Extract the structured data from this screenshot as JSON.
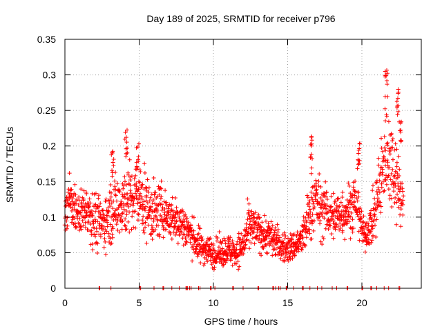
{
  "chart_data": {
    "type": "scatter",
    "title": "Day 189 of 2025, SRMTID for receiver p796",
    "xlabel": "GPS time / hours",
    "ylabel": "SRMTID / TECUs",
    "xlim": [
      0,
      24
    ],
    "ylim": [
      0,
      0.35
    ],
    "xticks": [
      0,
      5,
      10,
      15,
      20
    ],
    "xtick_labels": [
      "0",
      "5",
      "10",
      "15",
      "20"
    ],
    "yticks": [
      0,
      0.05,
      0.1,
      0.15,
      0.2,
      0.25,
      0.3,
      0.35
    ],
    "ytick_labels": [
      "0",
      "0.05",
      "0.1",
      "0.15",
      "0.2",
      "0.25",
      "0.3",
      "0.35"
    ],
    "grid": true,
    "marker": "+",
    "marker_color": "#ff0000",
    "series": [
      {
        "name": "SRMTID",
        "envelope": {
          "description": "approximate central value and spread of the point cloud vs time",
          "x": [
            0.0,
            0.3,
            0.6,
            1.0,
            1.5,
            2.0,
            2.5,
            3.0,
            3.5,
            4.0,
            4.2,
            4.5,
            5.0,
            5.5,
            6.0,
            6.5,
            7.0,
            7.5,
            8.0,
            8.5,
            9.0,
            9.5,
            10.0,
            10.5,
            11.0,
            11.5,
            12.0,
            12.3,
            12.6,
            13.0,
            13.5,
            14.0,
            14.5,
            15.0,
            15.5,
            16.0,
            16.3,
            16.6,
            16.9,
            17.2,
            17.5,
            18.0,
            18.5,
            19.0,
            19.5,
            19.8,
            20.0,
            20.2,
            20.5,
            20.8,
            21.0,
            21.3,
            21.6,
            21.9,
            22.2,
            22.5,
            22.8
          ],
          "center": [
            0.11,
            0.125,
            0.11,
            0.105,
            0.115,
            0.095,
            0.09,
            0.105,
            0.115,
            0.125,
            0.13,
            0.12,
            0.13,
            0.115,
            0.105,
            0.11,
            0.1,
            0.095,
            0.09,
            0.075,
            0.06,
            0.055,
            0.05,
            0.05,
            0.055,
            0.05,
            0.06,
            0.08,
            0.085,
            0.08,
            0.075,
            0.07,
            0.06,
            0.055,
            0.06,
            0.07,
            0.09,
            0.12,
            0.125,
            0.11,
            0.11,
            0.1,
            0.105,
            0.11,
            0.12,
            0.12,
            0.08,
            0.075,
            0.085,
            0.1,
            0.12,
            0.15,
            0.2,
            0.18,
            0.17,
            0.14,
            0.12
          ],
          "spread": [
            0.03,
            0.03,
            0.03,
            0.03,
            0.035,
            0.04,
            0.035,
            0.04,
            0.045,
            0.05,
            0.06,
            0.045,
            0.05,
            0.045,
            0.04,
            0.035,
            0.03,
            0.03,
            0.03,
            0.025,
            0.025,
            0.02,
            0.02,
            0.02,
            0.02,
            0.02,
            0.025,
            0.03,
            0.03,
            0.025,
            0.025,
            0.025,
            0.02,
            0.02,
            0.02,
            0.025,
            0.035,
            0.05,
            0.045,
            0.04,
            0.035,
            0.035,
            0.035,
            0.035,
            0.04,
            0.045,
            0.02,
            0.02,
            0.025,
            0.035,
            0.05,
            0.06,
            0.07,
            0.06,
            0.06,
            0.05,
            0.03
          ],
          "point_count": 1800
        },
        "peaks": [
          {
            "x": 4.1,
            "y": 0.225
          },
          {
            "x": 4.9,
            "y": 0.205
          },
          {
            "x": 3.2,
            "y": 0.195
          },
          {
            "x": 16.6,
            "y": 0.215
          },
          {
            "x": 19.8,
            "y": 0.205
          },
          {
            "x": 21.65,
            "y": 0.307
          },
          {
            "x": 22.4,
            "y": 0.282
          },
          {
            "x": 22.6,
            "y": 0.24
          }
        ],
        "zero_values_x": [
          2.3,
          2.35,
          3.1,
          5.05,
          5.1,
          6.0,
          6.6,
          6.65,
          7.2,
          7.7,
          8.15,
          8.2,
          8.25,
          8.4,
          8.5,
          9.0,
          9.1,
          9.8,
          9.85,
          10.1,
          11.3,
          11.35,
          12.0,
          13.0,
          13.05,
          14.0,
          14.05,
          14.2,
          14.4,
          14.5,
          14.9,
          14.95,
          15.4,
          16.0,
          16.05,
          16.5,
          17.0,
          17.3,
          18.0,
          18.3,
          19.0,
          19.05,
          20.0,
          20.05,
          20.6,
          20.65,
          21.0,
          21.5,
          21.8,
          22.5,
          22.55
        ]
      }
    ]
  }
}
